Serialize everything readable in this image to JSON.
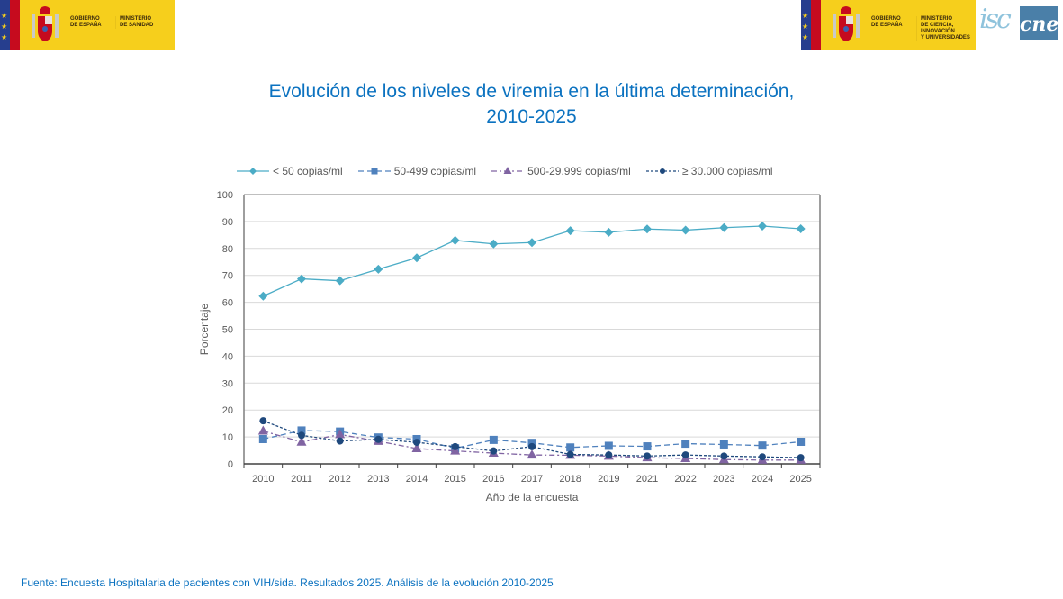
{
  "header": {
    "left_logo": {
      "line1": "GOBIERNO",
      "line2": "DE ESPAÑA",
      "ministry_lines": [
        "MINISTERIO",
        "DE SANIDAD"
      ]
    },
    "right_logo": {
      "line1": "GOBIERNO",
      "line2": "DE ESPAÑA",
      "ministry_lines": [
        "MINISTERIO",
        "DE CIENCIA, INNOVACIÓN",
        "Y UNIVERSIDADES"
      ]
    },
    "isc_logo": "isc",
    "cne_logo": "cne"
  },
  "title_line1": "Evolución de los niveles de viremia en la última determinación,",
  "title_line2": "2010-2025",
  "source": "Fuente: Encuesta Hospitalaria de pacientes con VIH/sida. Resultados 2025. Análisis de la evolución 2010-2025",
  "colors": {
    "title": "#0b72c0",
    "s1": "#4bacc6",
    "s2": "#4f81bd",
    "s3": "#8064a2",
    "s4": "#1f497d"
  },
  "chart_data": {
    "type": "line",
    "title": "Evolución de los niveles de viremia en la última determinación, 2010-2025",
    "xlabel": "Año de la encuesta",
    "ylabel": "Porcentaje",
    "ylim": [
      0,
      100
    ],
    "yticks": [
      0,
      10,
      20,
      30,
      40,
      50,
      60,
      70,
      80,
      90,
      100
    ],
    "grid": true,
    "legend_position": "top",
    "categories": [
      "2010",
      "2011",
      "2012",
      "2013",
      "2014",
      "2015",
      "2016",
      "2017",
      "2018",
      "2019",
      "2021",
      "2022",
      "2023",
      "2024",
      "2025"
    ],
    "series": [
      {
        "name": "< 50 copias/ml",
        "marker": "diamond",
        "line": "solid",
        "values": [
          62.3,
          68.7,
          68.0,
          72.3,
          76.5,
          83.0,
          81.7,
          82.2,
          86.6,
          86.0,
          87.2,
          86.8,
          87.7,
          88.3,
          87.3
        ]
      },
      {
        "name": "50-499 copias/ml",
        "marker": "square",
        "line": "dashed",
        "values": [
          9.2,
          12.4,
          12.0,
          9.8,
          9.2,
          5.8,
          8.9,
          7.8,
          6.1,
          6.7,
          6.5,
          7.5,
          7.2,
          6.8,
          8.2
        ]
      },
      {
        "name": "500-29.999 copias/ml",
        "marker": "triangle",
        "line": "dashdot",
        "values": [
          12.2,
          8.1,
          10.9,
          8.4,
          5.7,
          4.8,
          4.0,
          3.3,
          3.2,
          2.9,
          2.3,
          2.0,
          1.6,
          1.4,
          1.4
        ]
      },
      {
        "name": "≥ 30.000 copias/ml",
        "marker": "circle",
        "line": "dotted",
        "values": [
          16.0,
          10.6,
          8.5,
          9.1,
          8.0,
          6.4,
          4.8,
          6.4,
          3.5,
          3.3,
          2.9,
          3.3,
          2.9,
          2.6,
          2.3
        ]
      }
    ]
  }
}
